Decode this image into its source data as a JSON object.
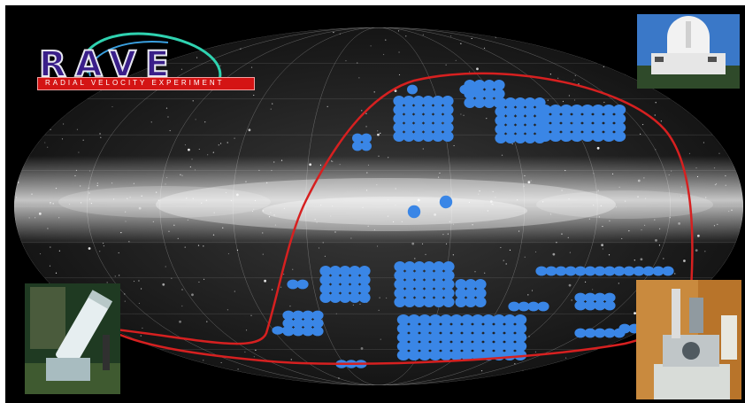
{
  "logo": {
    "title": "RAVE",
    "subtitle": "Radial Velocity Experiment"
  },
  "colors": {
    "footprint_outline": "#d62020",
    "survey_fields": "#3a86e6",
    "background": "#000000"
  },
  "photos": [
    {
      "name": "observatory-dome-photo"
    },
    {
      "name": "telescope-photo"
    },
    {
      "name": "spectrograph-instrument-photo"
    }
  ]
}
